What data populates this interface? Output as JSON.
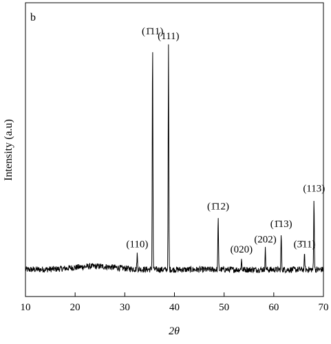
{
  "chart_data": {
    "type": "line",
    "panel_label": "b",
    "xlabel": "2θ",
    "ylabel": "Intensity (a.u)",
    "xlim": [
      10,
      70
    ],
    "ylim": [
      0,
      100
    ],
    "x_ticks": [
      10,
      20,
      30,
      40,
      50,
      60,
      70
    ],
    "y_ticks_shown": false,
    "grid": false,
    "legend": "none",
    "baseline": 6,
    "peaks": [
      {
        "label": "(110)",
        "x": 32.5,
        "y": 12
      },
      {
        "label": "(1̄11)",
        "x": 35.6,
        "y": 96
      },
      {
        "label": "(111)",
        "x": 38.8,
        "y": 94
      },
      {
        "label": "(1̄12)",
        "x": 48.8,
        "y": 27
      },
      {
        "label": "(020)",
        "x": 53.5,
        "y": 10
      },
      {
        "label": "(202)",
        "x": 58.3,
        "y": 14
      },
      {
        "label": "(1̄13)",
        "x": 61.5,
        "y": 20
      },
      {
        "label": "(3̄11)",
        "x": 66.2,
        "y": 12
      },
      {
        "label": "(113)",
        "x": 68.1,
        "y": 34
      }
    ],
    "line_color": "#000000"
  }
}
